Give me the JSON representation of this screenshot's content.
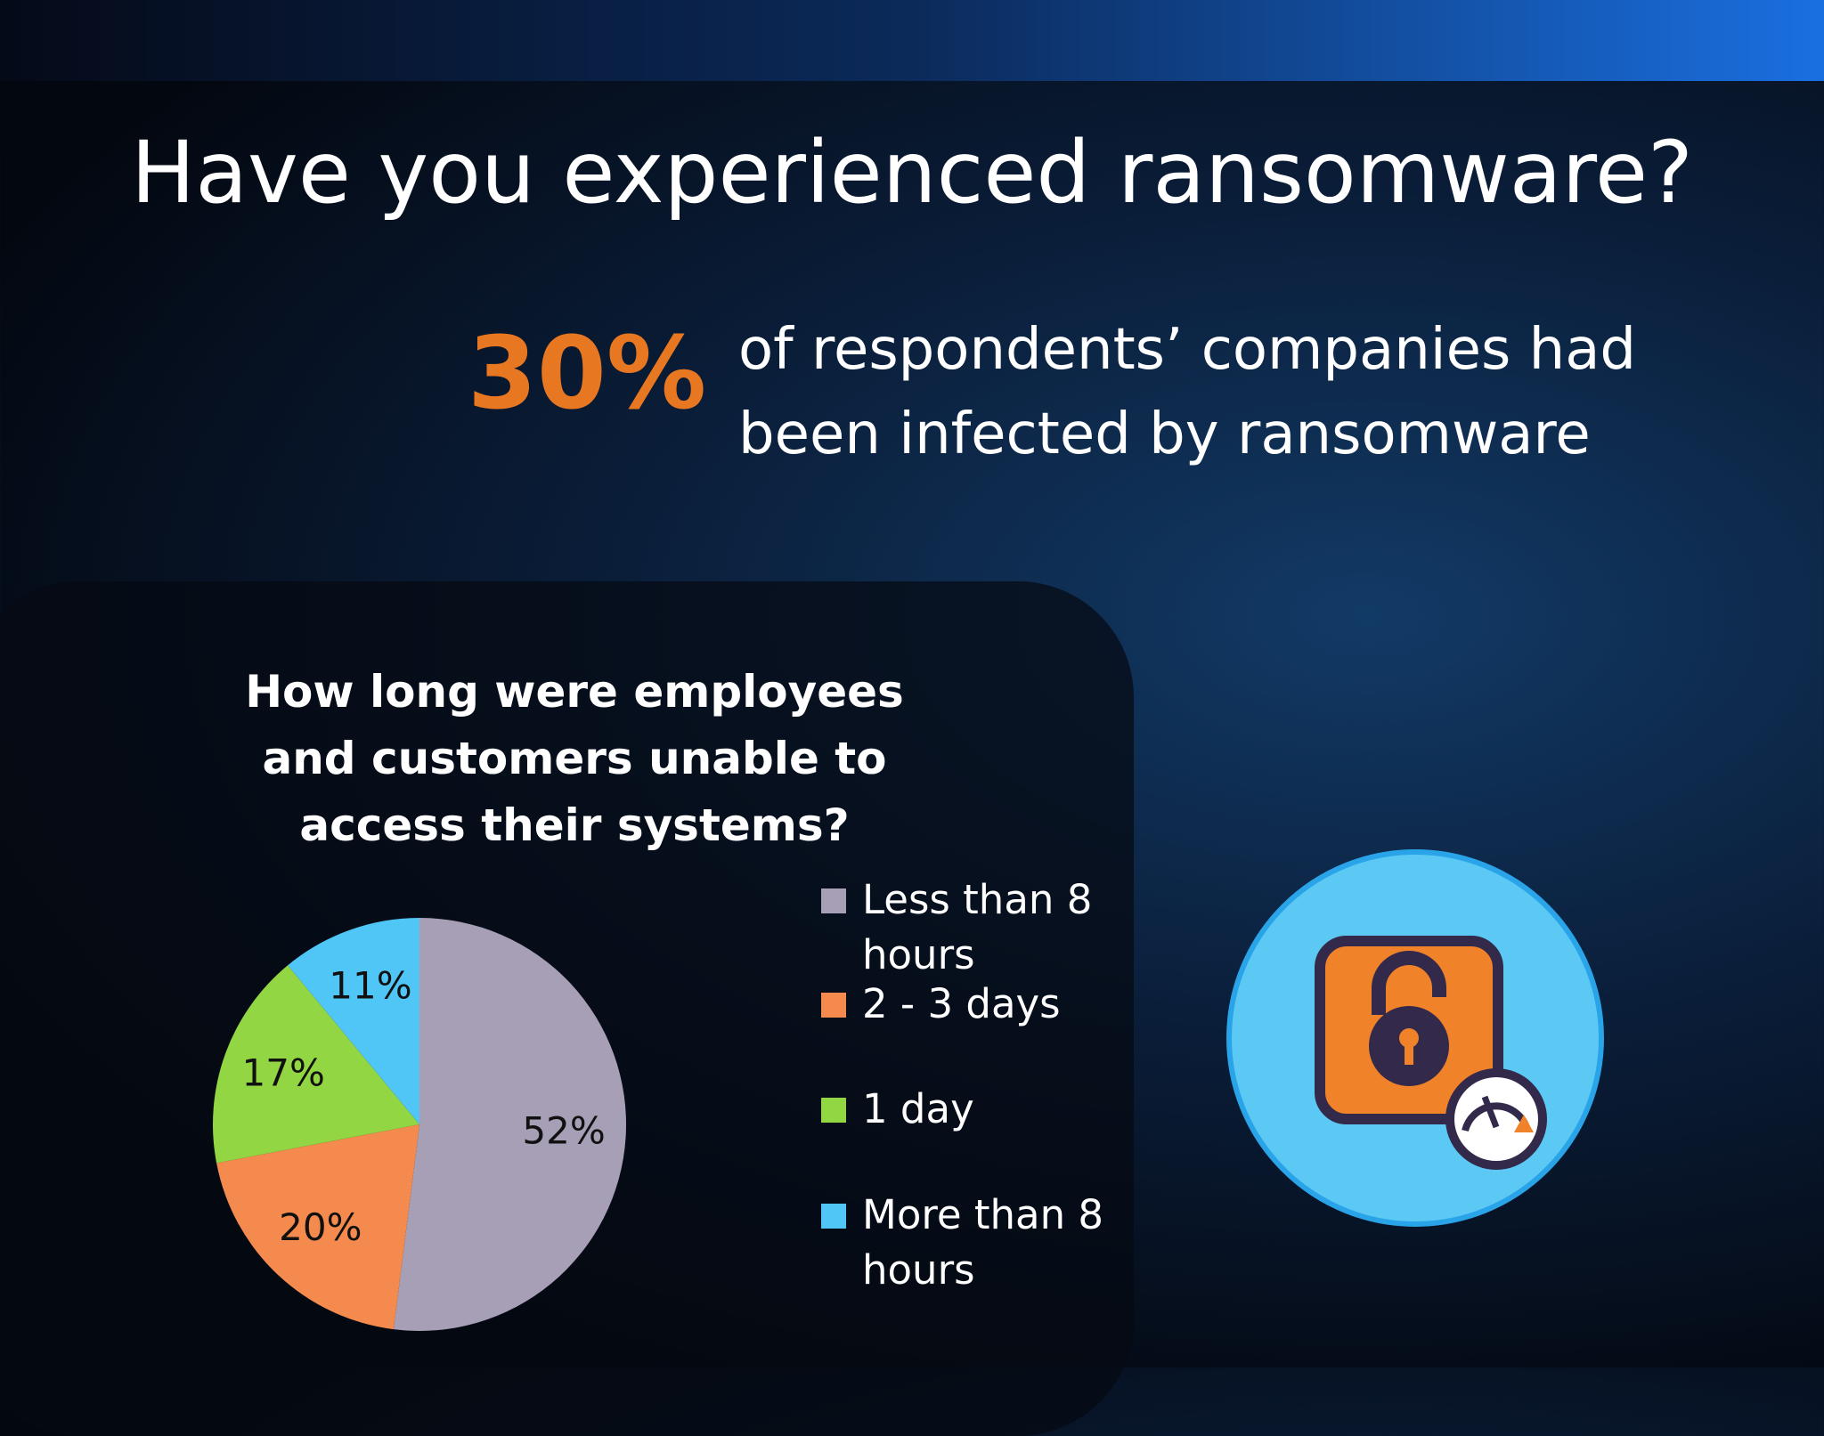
{
  "header": {
    "title": "Have you experienced ransomware?"
  },
  "stat": {
    "figure": "30%",
    "text": "of respondents’ companies had been infected by ransomware"
  },
  "chart_data": {
    "type": "pie",
    "title": "How long were employees and customers unable to access their systems?",
    "categories": [
      "Less than 8 hours",
      "2 - 3 days",
      "1 day",
      "More than 8 hours"
    ],
    "values": [
      52,
      20,
      17,
      11
    ],
    "value_labels": [
      "52%",
      "20%",
      "17%",
      "11%"
    ],
    "colors": [
      "#a79fb6",
      "#f58a4e",
      "#93d644",
      "#4fc6f6"
    ],
    "legend": "right"
  }
}
